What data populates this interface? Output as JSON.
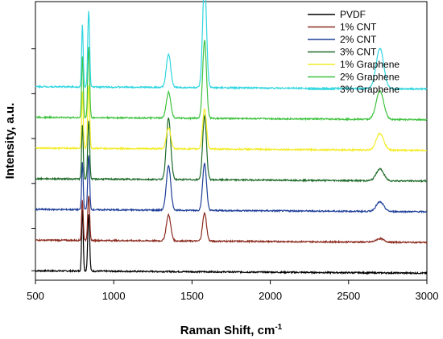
{
  "chart_data": {
    "type": "line",
    "xlabel": "Raman Shift, cm",
    "xlabel_sup": "-1",
    "ylabel": "Intensity, a.u.",
    "xlim": [
      500,
      3000
    ],
    "x_ticks": [
      500,
      1000,
      1500,
      2000,
      2500,
      3000
    ],
    "y_ticks_labeled": false,
    "grid": false,
    "legend_position": "top-right",
    "series": [
      {
        "name": "PVDF",
        "color": "#000000",
        "baseline": 0.0,
        "peaks": [
          [
            800,
            2.6
          ],
          [
            840,
            2.4
          ]
        ]
      },
      {
        "name": "1% CNT",
        "color": "#8b2b1f",
        "baseline": 1.3,
        "peaks": [
          [
            800,
            1.7
          ],
          [
            840,
            1.9
          ],
          [
            1350,
            1.1
          ],
          [
            1580,
            1.2
          ],
          [
            2700,
            0.15
          ]
        ]
      },
      {
        "name": "2% CNT",
        "color": "#1f3f99",
        "baseline": 2.6,
        "peaks": [
          [
            800,
            2.0
          ],
          [
            840,
            2.3
          ],
          [
            1350,
            1.9
          ],
          [
            1580,
            2.0
          ],
          [
            2700,
            0.4
          ]
        ]
      },
      {
        "name": "3% CNT",
        "color": "#1f6b2a",
        "baseline": 3.9,
        "peaks": [
          [
            800,
            2.3
          ],
          [
            840,
            2.5
          ],
          [
            1350,
            2.6
          ],
          [
            1580,
            2.7
          ],
          [
            2700,
            0.5
          ]
        ]
      },
      {
        "name": "1% Graphene",
        "color": "#f2ec28",
        "baseline": 5.2,
        "peaks": [
          [
            800,
            2.4
          ],
          [
            840,
            2.7
          ],
          [
            1350,
            0.9
          ],
          [
            1580,
            1.7
          ],
          [
            2700,
            0.7
          ]
        ]
      },
      {
        "name": "2% Graphene",
        "color": "#3fc23f",
        "baseline": 6.5,
        "peaks": [
          [
            800,
            2.6
          ],
          [
            840,
            3.0
          ],
          [
            1350,
            1.1
          ],
          [
            1580,
            3.3
          ],
          [
            2700,
            1.2
          ]
        ]
      },
      {
        "name": "3% Graphene",
        "color": "#2fd6e0",
        "baseline": 7.8,
        "peaks": [
          [
            800,
            2.6
          ],
          [
            840,
            3.2
          ],
          [
            1350,
            1.4
          ],
          [
            1580,
            4.6
          ],
          [
            2700,
            1.7
          ]
        ]
      }
    ],
    "ylim": [
      -0.4,
      11.4
    ]
  }
}
